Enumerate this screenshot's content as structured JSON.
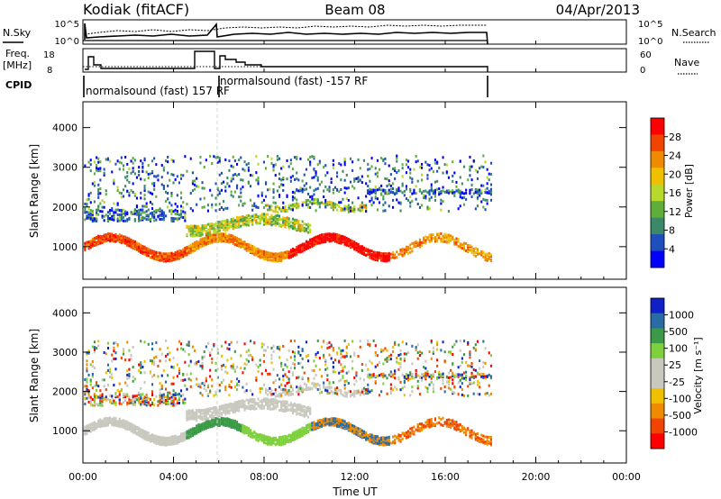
{
  "header": {
    "station": "Kodiak (fitACF)",
    "beam": "Beam 08",
    "date": "04/Apr/2013"
  },
  "panels": {
    "noise": {
      "left_label": "N.Sky",
      "right_label": "N.Search",
      "left_ticks": [
        "10^5",
        "10^0"
      ],
      "right_ticks": [
        "10^5",
        "10^0"
      ]
    },
    "freq": {
      "left_label_1": "Freq.",
      "left_label_2": "[MHz]",
      "right_label": "Nave",
      "left_ticks": [
        "18",
        "8"
      ],
      "right_ticks": [
        "60",
        "0"
      ]
    },
    "cpid": {
      "label": "CPID",
      "programs": [
        {
          "text": "normalsound (fast) 157 RF"
        },
        {
          "text": "normalsound (fast) -157 RF"
        }
      ]
    }
  },
  "colors": {
    "power_scale": [
      "#0000ff",
      "#1e4fbd",
      "#3a8a6a",
      "#5fae3a",
      "#b6d92b",
      "#f0c000",
      "#f08a00",
      "#f04400",
      "#ff0000"
    ],
    "velocity_scale": [
      "#ff0000",
      "#f04400",
      "#f08a00",
      "#f0c000",
      "#c8c8be",
      "#c8c8be",
      "#7ed03c",
      "#3a9a48",
      "#2a6aa6",
      "#1020c8"
    ]
  },
  "chart_data": [
    {
      "type": "heatmap",
      "name": "power",
      "title": "",
      "xlabel": "",
      "ylabel": "Slant Range [km]",
      "xlim": [
        "00:00",
        "24:00"
      ],
      "x_ticks": [
        "00:00",
        "04:00",
        "08:00",
        "12:00",
        "16:00",
        "20:00",
        "00:00"
      ],
      "ylim": [
        180,
        4650
      ],
      "y_ticks": [
        1000,
        2000,
        3000,
        4000
      ],
      "colorbar": {
        "label": "Power [dB]",
        "ticks": [
          4,
          8,
          12,
          16,
          20,
          24,
          28
        ]
      },
      "data_end": "18:00"
    },
    {
      "type": "heatmap",
      "name": "velocity",
      "title": "",
      "xlabel": "Time UT",
      "ylabel": "Slant Range [km]",
      "xlim": [
        "00:00",
        "24:00"
      ],
      "x_ticks": [
        "00:00",
        "04:00",
        "08:00",
        "12:00",
        "16:00",
        "20:00",
        "00:00"
      ],
      "ylim": [
        180,
        4650
      ],
      "y_ticks": [
        1000,
        2000,
        3000,
        4000
      ],
      "colorbar": {
        "label": "Velocity [m s⁻¹]",
        "ticks": [
          1000,
          500,
          100,
          25,
          -25,
          -100,
          -500,
          -1000
        ]
      },
      "data_end": "18:00"
    }
  ]
}
